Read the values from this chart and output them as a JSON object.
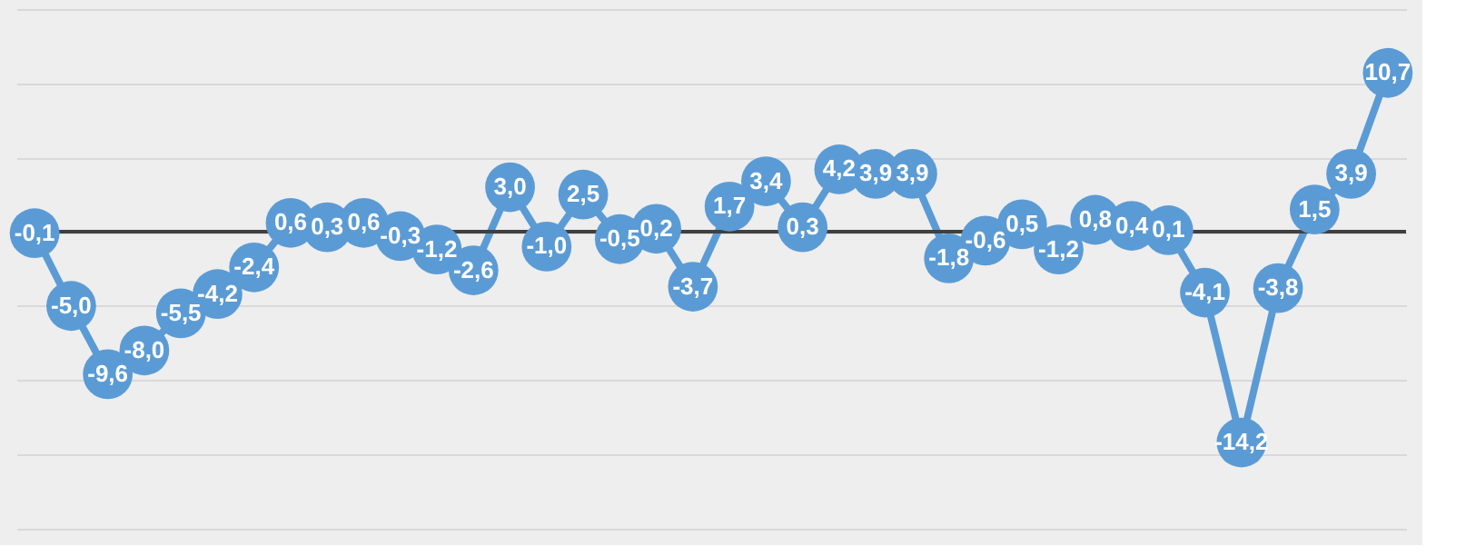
{
  "chart_data": {
    "type": "line",
    "categories": [
      null,
      null,
      null,
      null,
      null,
      null,
      null,
      null,
      null,
      null,
      null,
      null,
      null,
      null,
      null,
      null,
      null,
      null,
      null,
      null,
      null,
      null,
      null,
      null,
      null,
      null,
      null,
      null,
      null,
      null,
      null,
      null,
      null,
      null,
      null,
      null,
      null,
      null
    ],
    "series": [
      {
        "color": "#5b9bd5",
        "values": [
          -0.1,
          -5.0,
          -9.6,
          -8.0,
          -5.5,
          -4.2,
          -2.4,
          0.6,
          0.3,
          0.6,
          -0.3,
          -1.2,
          -2.6,
          3.0,
          -1.0,
          2.5,
          -0.5,
          0.2,
          -3.7,
          1.7,
          3.4,
          0.3,
          4.2,
          3.9,
          3.9,
          -1.8,
          -0.6,
          0.5,
          -1.2,
          0.8,
          0.4,
          0.1,
          -4.1,
          -14.2,
          -3.8,
          1.5,
          3.9,
          10.7
        ],
        "value_labels": [
          "-0,1",
          "-5,0",
          "-9,6",
          "-8,0",
          "-5,5",
          "-4,2",
          "-2,4",
          "0,6",
          "0,3",
          "0,6",
          "-0,3",
          "-1,2",
          "-2,6",
          "3,0",
          "-1,0",
          "2,5",
          "-0,5",
          "0,2",
          "-3,7",
          "1,7",
          "3,4",
          "0,3",
          "4,2",
          "3,9",
          "3,9",
          "-1,8",
          "-0,6",
          "0,5",
          "-1,2",
          "0,8",
          "0,4",
          "0,1",
          "-4,1",
          "-14,2",
          "-3,8",
          "1,5",
          "3,9",
          "10,7"
        ]
      }
    ],
    "ylim": [
      -20.5,
      15
    ],
    "yticks": [
      {
        "value": -20,
        "label": null
      },
      {
        "value": -15,
        "label": null
      },
      {
        "value": -10,
        "label": null
      },
      {
        "value": -5,
        "label": null
      },
      {
        "value": 0,
        "label": null
      },
      {
        "value": 5,
        "label": null
      },
      {
        "value": 10,
        "label": null
      },
      {
        "value": 15,
        "label": null
      }
    ],
    "ref_lines": [
      {
        "axis": "y",
        "value": 0,
        "label": null,
        "color": "#404040"
      }
    ],
    "grid": "y",
    "tick_labels": false,
    "marker": "circle",
    "line_style": "solid"
  }
}
